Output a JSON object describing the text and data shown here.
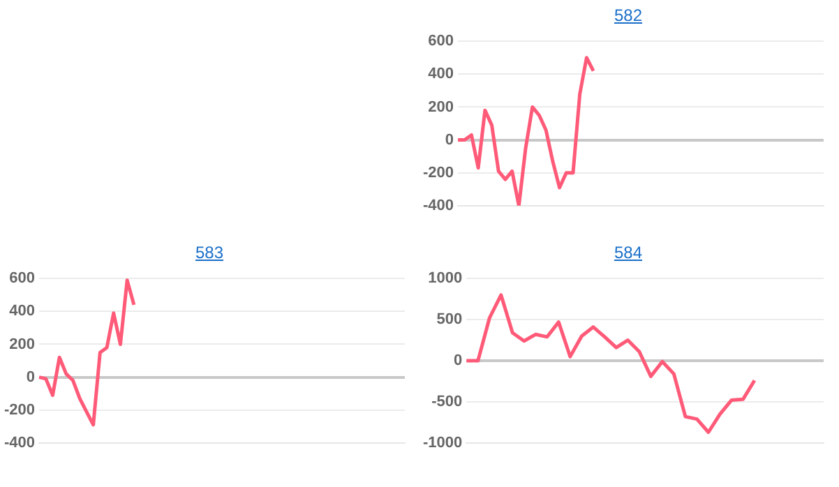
{
  "chart_data": [
    {
      "type": "line",
      "title": "582",
      "categories": [
        null,
        null,
        null,
        null,
        null,
        null,
        null,
        null,
        null,
        null,
        null,
        null,
        null,
        null,
        null,
        null,
        null,
        null,
        null,
        null,
        null,
        null,
        null,
        null,
        null,
        null,
        null,
        null,
        null,
        null,
        null,
        null,
        null,
        null,
        null,
        null,
        null,
        null,
        null,
        null,
        null,
        null,
        null,
        null,
        null,
        null,
        null,
        null,
        null,
        null,
        null,
        null,
        null,
        null,
        null
      ],
      "series": [
        {
          "color": "#ff5a78",
          "values": [
            0,
            0,
            30,
            -170,
            180,
            90,
            -190,
            -240,
            -190,
            -400,
            -50,
            200,
            150,
            60,
            -130,
            -290,
            -200,
            -200,
            280,
            500,
            420,
            null,
            null,
            null,
            null,
            null,
            null,
            null,
            null,
            null,
            null,
            null,
            null,
            null,
            null,
            null,
            null,
            null,
            null,
            null,
            null,
            null,
            null,
            null,
            null,
            null,
            null,
            null,
            null,
            null,
            null,
            null,
            null,
            null,
            null
          ]
        }
      ],
      "ylim": [
        -400,
        600
      ],
      "yticks": [
        -400,
        -200,
        0,
        200,
        400,
        600
      ],
      "grid": "y",
      "legend": false,
      "marker": "none",
      "tick_labels": "y"
    },
    {
      "type": "line",
      "title": "583",
      "categories": [
        null,
        null,
        null,
        null,
        null,
        null,
        null,
        null,
        null,
        null,
        null,
        null,
        null,
        null,
        null,
        null,
        null,
        null,
        null,
        null,
        null,
        null,
        null,
        null,
        null,
        null,
        null,
        null,
        null,
        null,
        null,
        null,
        null,
        null,
        null,
        null,
        null,
        null,
        null,
        null,
        null,
        null,
        null,
        null,
        null,
        null,
        null,
        null,
        null,
        null,
        null,
        null,
        null,
        null,
        null
      ],
      "series": [
        {
          "color": "#ff5a78",
          "values": [
            0,
            -10,
            -110,
            120,
            20,
            -20,
            -130,
            -210,
            -290,
            150,
            180,
            390,
            200,
            590,
            440,
            null,
            null,
            null,
            null,
            null,
            null,
            null,
            null,
            null,
            null,
            null,
            null,
            null,
            null,
            null,
            null,
            null,
            null,
            null,
            null,
            null,
            null,
            null,
            null,
            null,
            null,
            null,
            null,
            null,
            null,
            null,
            null,
            null,
            null,
            null,
            null,
            null,
            null,
            null,
            null
          ]
        }
      ],
      "ylim": [
        -400,
        600
      ],
      "yticks": [
        -400,
        -200,
        0,
        200,
        400,
        600
      ],
      "grid": "y",
      "legend": false,
      "marker": "none",
      "tick_labels": "y"
    },
    {
      "type": "line",
      "title": "584",
      "categories": [
        null,
        null,
        null,
        null,
        null,
        null,
        null,
        null,
        null,
        null,
        null,
        null,
        null,
        null,
        null,
        null,
        null,
        null,
        null,
        null,
        null,
        null,
        null,
        null,
        null,
        null,
        null,
        null,
        null,
        null,
        null,
        null
      ],
      "series": [
        {
          "color": "#ff5a78",
          "values": [
            0,
            0,
            520,
            800,
            340,
            240,
            320,
            290,
            470,
            50,
            300,
            410,
            290,
            160,
            250,
            110,
            -190,
            -10,
            -160,
            -680,
            -710,
            -870,
            -650,
            -480,
            -470,
            -240,
            null,
            null,
            null,
            null,
            null,
            null
          ]
        }
      ],
      "ylim": [
        -1000,
        1000
      ],
      "yticks": [
        -1000,
        -500,
        0,
        500,
        1000
      ],
      "grid": "y",
      "legend": false,
      "marker": "none",
      "tick_labels": "y"
    }
  ]
}
